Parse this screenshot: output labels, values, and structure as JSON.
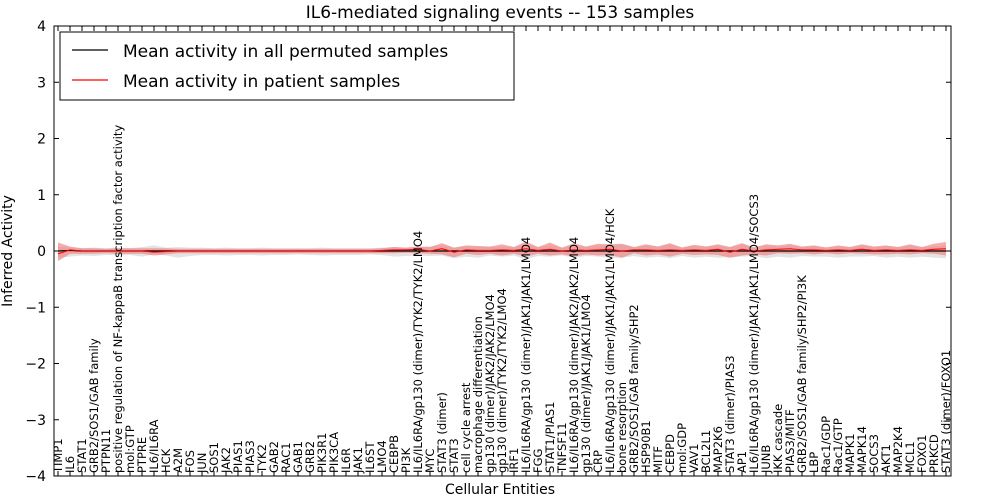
{
  "chart_data": {
    "type": "line",
    "title": "IL6-mediated signaling events -- 153 samples",
    "xlabel": "Cellular Entities",
    "ylabel": "Inferred Activity",
    "ylim": [
      -4,
      4
    ],
    "yticks": [
      -4,
      -3,
      -2,
      -1,
      0,
      1,
      2,
      3,
      4
    ],
    "ytick_labels": [
      "−4",
      "−3",
      "−2",
      "−1",
      "0",
      "1",
      "2",
      "3",
      "4"
    ],
    "legend_position": "top-left",
    "categories": [
      "TIMP1",
      "IL6",
      "STAT1",
      "GRB2/SOS1/GAB family",
      "PTPN11",
      "positive regulation of NF-kappaB transcription factor activity",
      "mol:GTP",
      "PTPRE",
      "IL6/IL6RA",
      "HCK",
      "A2M",
      "FOS",
      "JUN",
      "SOS1",
      "JAK2",
      "PIAS1",
      "PIAS3",
      "TYK2",
      "GAB2",
      "RAC1",
      "GAB1",
      "GRB2",
      "PIK3R1",
      "PIK3CA",
      "IL6R",
      "JAK1",
      "IL6ST",
      "LMO4",
      "CEBPB",
      "PI3K",
      "IL6/IL6RA/gp130 (dimer)/TYK2/TYK2/LMO4",
      "MYC",
      "STAT3 (dimer)",
      "STAT3",
      "cell cycle arrest",
      "macrophage differentiation",
      "gp130 (dimer)/JAK2/JAK2/LMO4",
      "gp130 (dimer)/TYK2/TYK2/LMO4",
      "IRF1",
      "IL6/IL6RA/gp130 (dimer)/JAK1/JAK1/LMO4",
      "FGG",
      "STAT1/PIAS1",
      "TNFSF11",
      "IL6/IL6RA/gp130 (dimer)/JAK2/JAK2/LMO4",
      "gp130 (dimer)/JAK1/JAK1/LMO4",
      "CRP",
      "IL6/IL6RA/gp130 (dimer)/JAK1/JAK1/LMO4/HCK",
      "bone resorption",
      "GRB2/SOS1/GAB family/SHP2",
      "HSP90B1",
      "MITF",
      "CEBPD",
      "mol:GDP",
      "VAV1",
      "BCL2L1",
      "MAP2K6",
      "STAT3 (dimer)/PIAS3",
      "AP1",
      "IL6/IL6RA/gp130 (dimer)/JAK1/JAK1/LMO4/SOCS3",
      "JUNB",
      "IKK cascade",
      "PIAS3/MITF",
      "GRB2/SOS1/GAB family/SHP2/PI3K",
      "LBP",
      "Rac1/GDP",
      "Rac1/GTP",
      "MAPK1",
      "MAPK14",
      "SOCS3",
      "AKT1",
      "MAP2K4",
      "MCL1",
      "FOXO1",
      "PRKCD",
      "STAT3 (dimer)/FOXO1"
    ],
    "series": [
      {
        "name": "Mean activity in all permuted samples",
        "color": "#000000",
        "values": [
          0,
          0.01,
          0,
          0,
          0,
          0,
          0,
          0,
          0,
          0,
          0,
          0,
          0,
          0,
          0,
          0,
          0,
          0,
          0,
          0,
          0,
          0,
          0,
          0,
          0,
          0,
          0,
          0,
          0,
          0,
          0,
          0,
          0,
          0,
          0,
          0,
          0,
          0,
          0,
          0,
          0,
          0,
          0,
          0,
          0,
          0,
          0,
          0,
          0,
          0,
          0,
          0,
          0,
          0,
          0,
          0,
          0,
          0,
          0,
          0,
          0,
          0,
          0,
          0,
          0,
          0,
          0,
          0,
          0,
          0,
          0,
          0,
          0,
          0,
          0
        ],
        "band_upper": [
          0.08,
          0.06,
          0.05,
          0.06,
          0.05,
          0.06,
          0.05,
          0.07,
          0.1,
          0.06,
          0.07,
          0.06,
          0.06,
          0.05,
          0.06,
          0.05,
          0.05,
          0.06,
          0.05,
          0.05,
          0.05,
          0.05,
          0.06,
          0.05,
          0.05,
          0.05,
          0.05,
          0.06,
          0.07,
          0.06,
          0.07,
          0.08,
          0.1,
          0.06,
          0.08,
          0.08,
          0.07,
          0.08,
          0.07,
          0.12,
          0.07,
          0.1,
          0.06,
          0.09,
          0.07,
          0.1,
          0.09,
          0.12,
          0.07,
          0.1,
          0.08,
          0.12,
          0.07,
          0.09,
          0.08,
          0.1,
          0.07,
          0.12,
          0.07,
          0.1,
          0.08,
          0.1,
          0.07,
          0.09,
          0.07,
          0.08,
          0.07,
          0.1,
          0.07,
          0.09,
          0.07,
          0.1,
          0.07,
          0.08,
          0.1
        ],
        "band_lower": [
          -0.12,
          -0.1,
          -0.08,
          -0.09,
          -0.07,
          -0.08,
          -0.07,
          -0.1,
          -0.06,
          -0.08,
          -0.12,
          -0.09,
          -0.07,
          -0.07,
          -0.08,
          -0.07,
          -0.07,
          -0.08,
          -0.07,
          -0.07,
          -0.06,
          -0.07,
          -0.08,
          -0.07,
          -0.07,
          -0.07,
          -0.06,
          -0.07,
          -0.1,
          -0.09,
          -0.08,
          -0.09,
          -0.08,
          -0.13,
          -0.1,
          -0.12,
          -0.08,
          -0.1,
          -0.08,
          -0.15,
          -0.09,
          -0.1,
          -0.08,
          -0.12,
          -0.09,
          -0.1,
          -0.12,
          -0.12,
          -0.09,
          -0.12,
          -0.1,
          -0.13,
          -0.09,
          -0.12,
          -0.1,
          -0.12,
          -0.11,
          -0.1,
          -0.09,
          -0.13,
          -0.1,
          -0.12,
          -0.09,
          -0.1,
          -0.1,
          -0.12,
          -0.1,
          -0.1,
          -0.09,
          -0.12,
          -0.1,
          -0.12,
          -0.1,
          -0.12,
          -0.13
        ]
      },
      {
        "name": "Mean activity in patient samples",
        "color": "#ff0000",
        "values": [
          -0.05,
          0.02,
          0,
          0,
          0,
          0,
          0,
          0,
          -0.02,
          -0.01,
          0,
          0,
          0,
          0,
          0,
          0,
          0,
          0,
          0,
          0,
          0,
          0,
          0,
          0,
          0,
          0,
          0,
          0.01,
          0.02,
          0.02,
          0.03,
          0,
          0.04,
          -0.02,
          0.02,
          0.01,
          0.01,
          0.02,
          0.01,
          0.04,
          0.01,
          0.03,
          0,
          0.02,
          0.01,
          0.02,
          0.03,
          0,
          0.02,
          0.02,
          0.01,
          0.02,
          0.01,
          0.02,
          0.01,
          0.03,
          -0.02,
          0.03,
          0,
          0.02,
          0.03,
          0.04,
          0.02,
          0.02,
          0.01,
          0.02,
          0.01,
          0.03,
          0.01,
          0.02,
          0.01,
          0.02,
          0.01,
          0.03,
          0.04
        ],
        "band_upper": [
          0.15,
          0.08,
          0.05,
          0.05,
          0.04,
          0.05,
          0.05,
          0.05,
          0.05,
          0.05,
          0.04,
          0.04,
          0.04,
          0.04,
          0.04,
          0.04,
          0.04,
          0.04,
          0.04,
          0.04,
          0.04,
          0.04,
          0.04,
          0.04,
          0.04,
          0.04,
          0.04,
          0.05,
          0.07,
          0.06,
          0.08,
          0.07,
          0.14,
          0.06,
          0.1,
          0.09,
          0.08,
          0.12,
          0.07,
          0.17,
          0.07,
          0.15,
          0.06,
          0.14,
          0.08,
          0.13,
          0.12,
          0.13,
          0.07,
          0.12,
          0.08,
          0.14,
          0.06,
          0.11,
          0.08,
          0.12,
          0.07,
          0.14,
          0.06,
          0.12,
          0.1,
          0.13,
          0.08,
          0.1,
          0.06,
          0.1,
          0.07,
          0.12,
          0.08,
          0.1,
          0.07,
          0.12,
          0.07,
          0.13,
          0.16
        ],
        "band_lower": [
          -0.18,
          -0.05,
          -0.05,
          -0.05,
          -0.04,
          -0.05,
          -0.05,
          -0.05,
          -0.08,
          -0.06,
          -0.04,
          -0.04,
          -0.04,
          -0.04,
          -0.04,
          -0.04,
          -0.04,
          -0.04,
          -0.04,
          -0.04,
          -0.04,
          -0.04,
          -0.04,
          -0.04,
          -0.04,
          -0.04,
          -0.04,
          -0.04,
          -0.04,
          -0.03,
          -0.04,
          -0.05,
          -0.06,
          -0.11,
          -0.05,
          -0.07,
          -0.05,
          -0.08,
          -0.05,
          -0.1,
          -0.05,
          -0.08,
          -0.06,
          -0.1,
          -0.06,
          -0.08,
          -0.07,
          -0.12,
          -0.04,
          -0.08,
          -0.06,
          -0.1,
          -0.05,
          -0.07,
          -0.06,
          -0.07,
          -0.12,
          -0.08,
          -0.06,
          -0.08,
          -0.04,
          -0.05,
          -0.04,
          -0.06,
          -0.04,
          -0.06,
          -0.04,
          -0.05,
          -0.06,
          -0.06,
          -0.05,
          -0.06,
          -0.04,
          -0.05,
          -0.08
        ]
      }
    ],
    "colors": {
      "permuted_band": "#d9d9d9",
      "patient_band": "#f08080"
    }
  }
}
